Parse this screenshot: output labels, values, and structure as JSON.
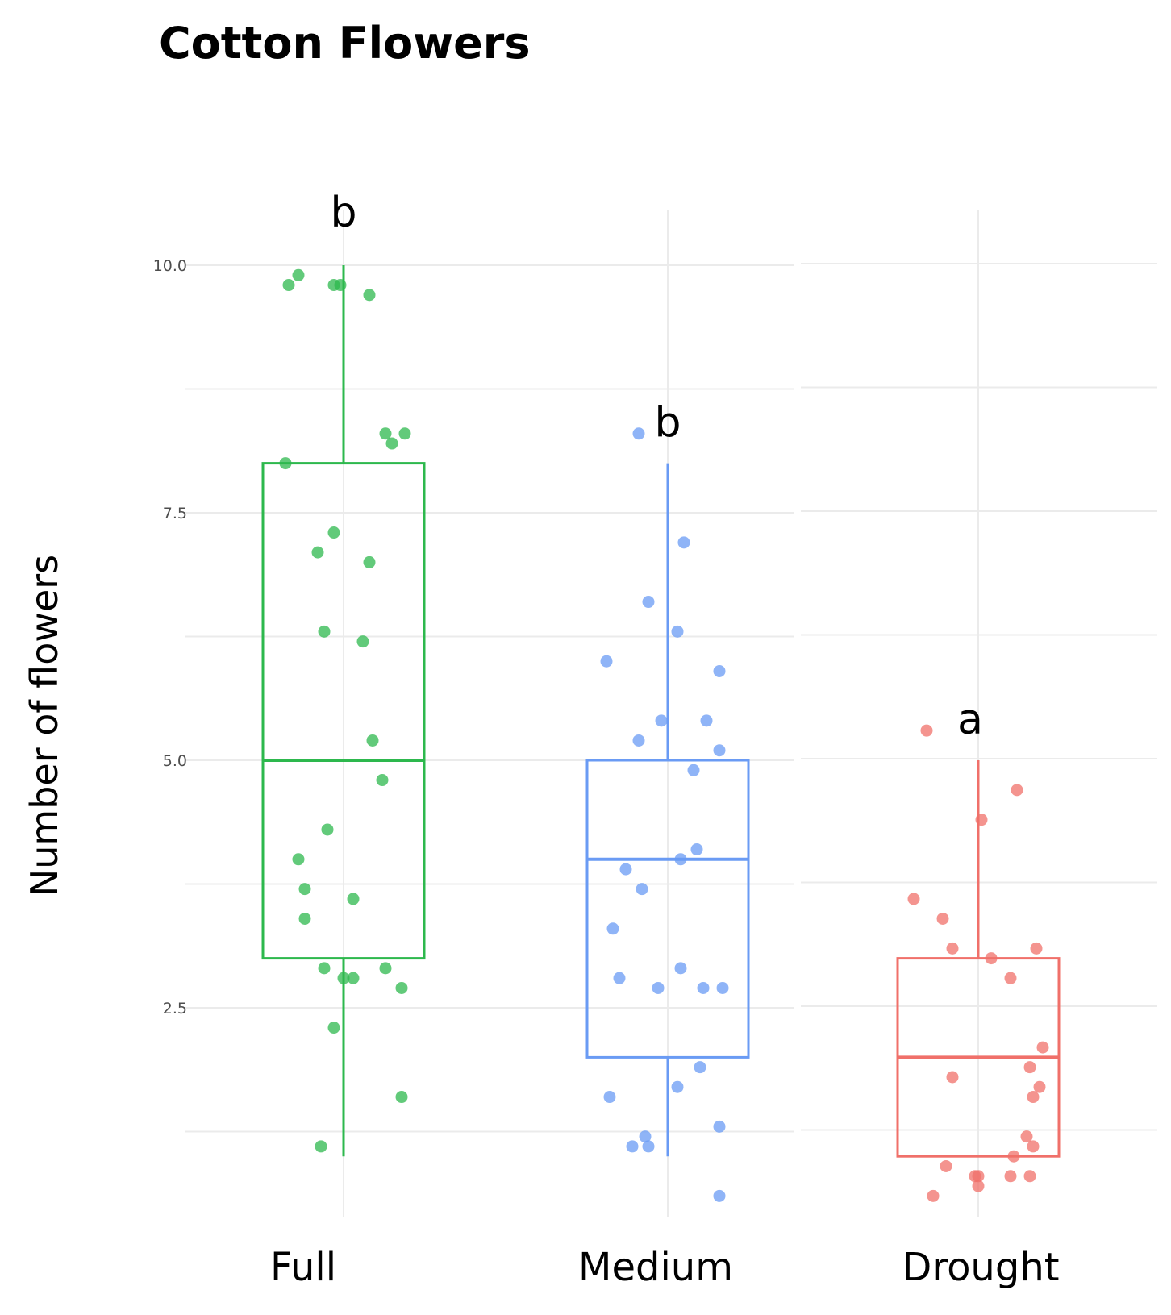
{
  "chart_data": {
    "type": "box",
    "title": "Cotton Flowers",
    "ylabel": "Number of flowers",
    "xlabel": "",
    "ylim": [
      0.4,
      10.3
    ],
    "yticks": [
      "2.5",
      "5.0",
      "7.5",
      "10.0"
    ],
    "grid": true,
    "legend": "none",
    "categories": [
      "Full",
      "Medium",
      "Drought"
    ],
    "colors": [
      "#2db84d",
      "#6a9bf4",
      "#f0706a"
    ],
    "letters": [
      "b",
      "b",
      "a"
    ],
    "boxes": [
      {
        "whisker_low": 1.0,
        "q1": 3.0,
        "median": 5.0,
        "q3": 8.0,
        "whisker_high": 10.0
      },
      {
        "whisker_low": 1.0,
        "q1": 2.0,
        "median": 4.0,
        "q3": 5.0,
        "whisker_high": 8.0
      },
      {
        "whisker_low": 1.0,
        "q1": 1.0,
        "median": 2.0,
        "q3": 3.0,
        "whisker_high": 5.0
      }
    ],
    "points": [
      [
        {
          "x": -0.17,
          "y": 9.8
        },
        {
          "x": -0.14,
          "y": 9.9
        },
        {
          "x": -0.03,
          "y": 9.8
        },
        {
          "x": -0.01,
          "y": 9.8
        },
        {
          "x": 0.08,
          "y": 9.7
        },
        {
          "x": 0.13,
          "y": 8.3
        },
        {
          "x": 0.15,
          "y": 8.2
        },
        {
          "x": 0.19,
          "y": 8.3
        },
        {
          "x": -0.18,
          "y": 8.0
        },
        {
          "x": -0.03,
          "y": 7.3
        },
        {
          "x": -0.08,
          "y": 7.1
        },
        {
          "x": 0.08,
          "y": 7.0
        },
        {
          "x": -0.06,
          "y": 6.3
        },
        {
          "x": 0.06,
          "y": 6.2
        },
        {
          "x": 0.09,
          "y": 5.2
        },
        {
          "x": 0.12,
          "y": 4.8
        },
        {
          "x": -0.05,
          "y": 4.3
        },
        {
          "x": -0.14,
          "y": 4.0
        },
        {
          "x": -0.12,
          "y": 3.7
        },
        {
          "x": 0.03,
          "y": 3.6
        },
        {
          "x": -0.12,
          "y": 3.4
        },
        {
          "x": -0.06,
          "y": 2.9
        },
        {
          "x": 0.0,
          "y": 2.8
        },
        {
          "x": 0.03,
          "y": 2.8
        },
        {
          "x": 0.13,
          "y": 2.9
        },
        {
          "x": 0.18,
          "y": 2.7
        },
        {
          "x": -0.03,
          "y": 2.3
        },
        {
          "x": 0.18,
          "y": 1.6
        },
        {
          "x": -0.07,
          "y": 1.1
        }
      ],
      [
        {
          "x": -0.09,
          "y": 8.3
        },
        {
          "x": 0.05,
          "y": 7.2
        },
        {
          "x": -0.06,
          "y": 6.6
        },
        {
          "x": 0.03,
          "y": 6.3
        },
        {
          "x": -0.19,
          "y": 6.0
        },
        {
          "x": 0.16,
          "y": 5.9
        },
        {
          "x": -0.02,
          "y": 5.4
        },
        {
          "x": 0.12,
          "y": 5.4
        },
        {
          "x": -0.09,
          "y": 5.2
        },
        {
          "x": 0.16,
          "y": 5.1
        },
        {
          "x": 0.08,
          "y": 4.9
        },
        {
          "x": 0.09,
          "y": 4.1
        },
        {
          "x": 0.04,
          "y": 4.0
        },
        {
          "x": -0.13,
          "y": 3.9
        },
        {
          "x": -0.08,
          "y": 3.7
        },
        {
          "x": -0.17,
          "y": 3.3
        },
        {
          "x": 0.04,
          "y": 2.9
        },
        {
          "x": -0.15,
          "y": 2.8
        },
        {
          "x": -0.03,
          "y": 2.7
        },
        {
          "x": 0.11,
          "y": 2.7
        },
        {
          "x": 0.17,
          "y": 2.7
        },
        {
          "x": 0.1,
          "y": 1.9
        },
        {
          "x": 0.03,
          "y": 1.7
        },
        {
          "x": -0.18,
          "y": 1.6
        },
        {
          "x": -0.07,
          "y": 1.2
        },
        {
          "x": -0.11,
          "y": 1.1
        },
        {
          "x": -0.06,
          "y": 1.1
        },
        {
          "x": 0.16,
          "y": 1.3
        },
        {
          "x": 0.16,
          "y": 0.6
        }
      ],
      [
        {
          "x": -0.16,
          "y": 5.3
        },
        {
          "x": 0.12,
          "y": 4.7
        },
        {
          "x": 0.01,
          "y": 4.4
        },
        {
          "x": -0.2,
          "y": 3.6
        },
        {
          "x": -0.11,
          "y": 3.4
        },
        {
          "x": -0.08,
          "y": 3.1
        },
        {
          "x": 0.04,
          "y": 3.0
        },
        {
          "x": 0.18,
          "y": 3.1
        },
        {
          "x": 0.1,
          "y": 2.8
        },
        {
          "x": 0.2,
          "y": 2.1
        },
        {
          "x": 0.16,
          "y": 1.9
        },
        {
          "x": -0.08,
          "y": 1.8
        },
        {
          "x": 0.17,
          "y": 1.6
        },
        {
          "x": 0.19,
          "y": 1.7
        },
        {
          "x": 0.15,
          "y": 1.2
        },
        {
          "x": 0.17,
          "y": 1.1
        },
        {
          "x": 0.11,
          "y": 1.0
        },
        {
          "x": -0.1,
          "y": 0.9
        },
        {
          "x": -0.01,
          "y": 0.8
        },
        {
          "x": 0.0,
          "y": 0.8
        },
        {
          "x": -0.14,
          "y": 0.6
        },
        {
          "x": 0.0,
          "y": 0.7
        },
        {
          "x": 0.1,
          "y": 0.8
        },
        {
          "x": 0.16,
          "y": 0.8
        }
      ]
    ]
  }
}
